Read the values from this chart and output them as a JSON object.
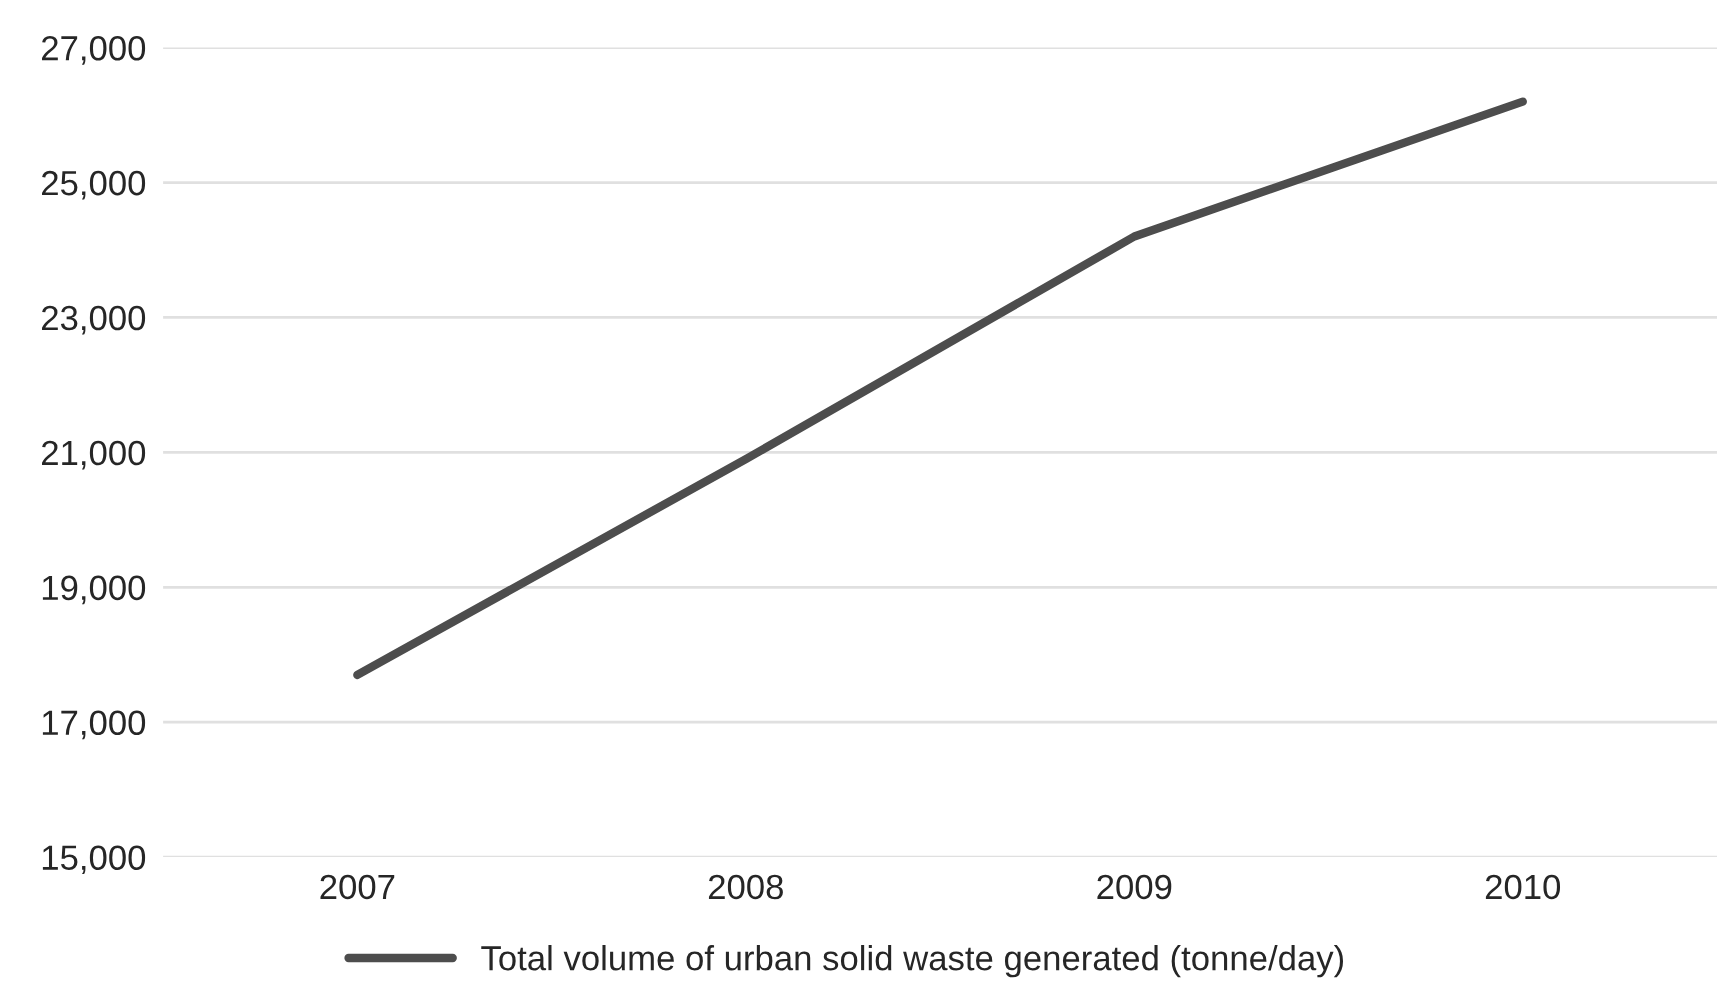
{
  "chart_data": {
    "type": "line",
    "categories": [
      "2007",
      "2008",
      "2009",
      "2010"
    ],
    "series": [
      {
        "name": "Total volume of urban solid waste generated (tonne/day)",
        "color": "#4d4d4d",
        "values": [
          17700,
          20900,
          24200,
          26200
        ]
      }
    ],
    "ylim": [
      15000,
      27000
    ],
    "yticks": [
      {
        "value": 15000,
        "label": "15,000"
      },
      {
        "value": 17000,
        "label": "17,000"
      },
      {
        "value": 19000,
        "label": "19,000"
      },
      {
        "value": 21000,
        "label": "21,000"
      },
      {
        "value": 23000,
        "label": "23,000"
      },
      {
        "value": 25000,
        "label": "25,000"
      },
      {
        "value": 27000,
        "label": "27,000"
      }
    ],
    "grid": "y",
    "legend": "bottom",
    "marker": "none",
    "line_style": "solid"
  }
}
